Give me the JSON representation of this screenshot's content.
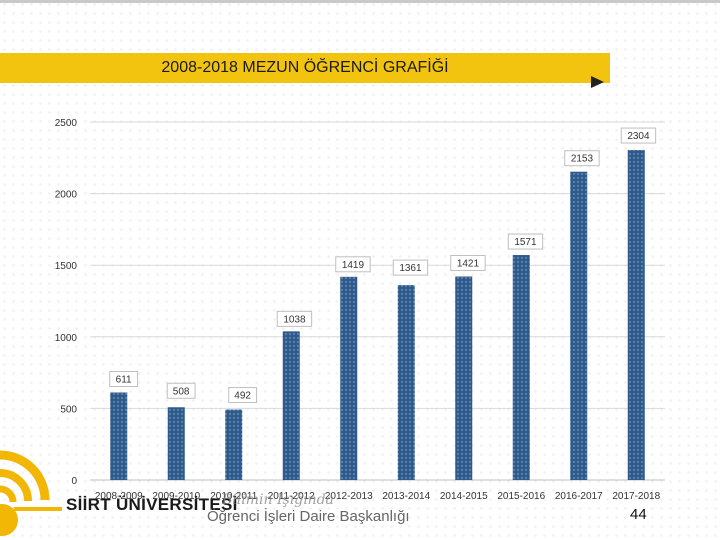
{
  "slide": {
    "university": "SİİRT ÜNİVERSİTESİ",
    "slogan": "Bilimin Işığında",
    "department": "Öğrenci İşleri Daire Başkanlığı",
    "page_number": "44"
  },
  "colors": {
    "banner": "#f2c40f",
    "bar": "#2e5a8c",
    "grid": "#d9d9d9",
    "label_border": "#bfbfbf"
  },
  "chart_data": {
    "type": "bar",
    "title": "2008-2018 MEZUN ÖĞRENCİ GRAFİĞİ",
    "categories": [
      "2008-2009",
      "2009-2010",
      "2010-2011",
      "2011-2012",
      "2012-2013",
      "2013-2014",
      "2014-2015",
      "2015-2016",
      "2016-2017",
      "2017-2018"
    ],
    "values": [
      611,
      508,
      492,
      1038,
      1419,
      1361,
      1421,
      1571,
      2153,
      2304
    ],
    "xlabel": "",
    "ylabel": "",
    "ylim": [
      0,
      2500
    ],
    "yticks": [
      0,
      500,
      1000,
      1500,
      2000,
      2500
    ],
    "grid": true,
    "legend": "none"
  }
}
